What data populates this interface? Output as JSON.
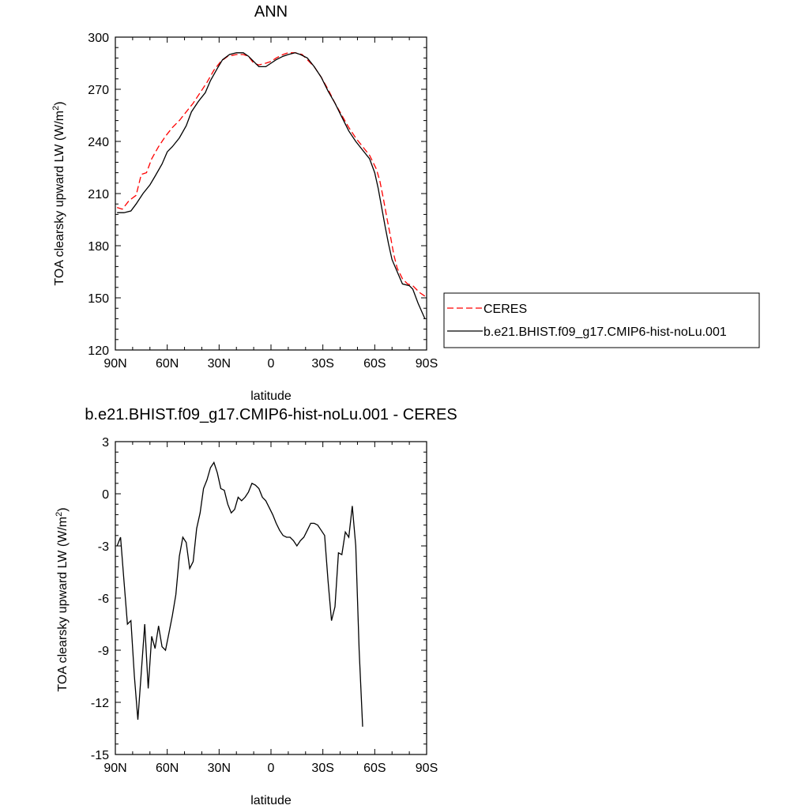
{
  "chart_data": [
    {
      "type": "line",
      "title": "ANN",
      "xlabel": "latitude",
      "ylabel": "TOA clearsky upward LW (W/m²)",
      "xlim": [
        90,
        -90
      ],
      "ylim": [
        120,
        300
      ],
      "x_ticks": [
        90,
        60,
        30,
        0,
        -30,
        -60,
        -90
      ],
      "x_tick_labels": [
        "90N",
        "60N",
        "30N",
        "0",
        "30S",
        "60S",
        "90S"
      ],
      "y_ticks": [
        120,
        150,
        180,
        210,
        240,
        270,
        300
      ],
      "y_tick_labels": [
        "120",
        "150",
        "180",
        "210",
        "240",
        "270",
        "300"
      ],
      "legend_position": "right",
      "series": [
        {
          "name": "CERES",
          "color": "#ff0000",
          "dash": "dashed",
          "points": [
            [
              89,
              202
            ],
            [
              86,
              201
            ],
            [
              82,
              206
            ],
            [
              78,
              209
            ],
            [
              75,
              221
            ],
            [
              72,
              222
            ],
            [
              69,
              230
            ],
            [
              65,
              237
            ],
            [
              61,
              243
            ],
            [
              57,
              248
            ],
            [
              53,
              252
            ],
            [
              49,
              257
            ],
            [
              45,
              262
            ],
            [
              41,
              268
            ],
            [
              37,
              274
            ],
            [
              33,
              281
            ],
            [
              29,
              286
            ],
            [
              25,
              289
            ],
            [
              20,
              290
            ],
            [
              16,
              290
            ],
            [
              13,
              289
            ],
            [
              10,
              285
            ],
            [
              7,
              284
            ],
            [
              3,
              285
            ],
            [
              0,
              286
            ],
            [
              -3,
              288
            ],
            [
              -7,
              290
            ],
            [
              -10,
              291
            ],
            [
              -14,
              291
            ],
            [
              -18,
              290
            ],
            [
              -21,
              287
            ],
            [
              -25,
              283
            ],
            [
              -29,
              277
            ],
            [
              -33,
              270
            ],
            [
              -37,
              262
            ],
            [
              -41,
              255
            ],
            [
              -45,
              248
            ],
            [
              -49,
              242
            ],
            [
              -53,
              237
            ],
            [
              -57,
              232
            ],
            [
              -61,
              224
            ],
            [
              -63,
              217
            ],
            [
              -65,
              207
            ],
            [
              -67,
              196
            ],
            [
              -69,
              186
            ],
            [
              -71,
              175
            ],
            [
              -73,
              167
            ],
            [
              -76,
              161
            ],
            [
              -79,
              158
            ],
            [
              -82,
              157
            ],
            [
              -86,
              153
            ],
            [
              -89,
              151
            ]
          ]
        },
        {
          "name": "b.e21.BHIST.f09_g17.CMIP6-hist-noLu.001",
          "color": "#000000",
          "dash": "solid",
          "points": [
            [
              89,
              199
            ],
            [
              85,
              199
            ],
            [
              81,
              200
            ],
            [
              78,
              204
            ],
            [
              74,
              210
            ],
            [
              70,
              215
            ],
            [
              67,
              220
            ],
            [
              63,
              227
            ],
            [
              60,
              234
            ],
            [
              57,
              237
            ],
            [
              53,
              242
            ],
            [
              49,
              249
            ],
            [
              46,
              257
            ],
            [
              42,
              263
            ],
            [
              38,
              268
            ],
            [
              35,
              275
            ],
            [
              31,
              282
            ],
            [
              28,
              287
            ],
            [
              24,
              290
            ],
            [
              20,
              291
            ],
            [
              16,
              291
            ],
            [
              13,
              289
            ],
            [
              10,
              286
            ],
            [
              7,
              283
            ],
            [
              3,
              283
            ],
            [
              0,
              285
            ],
            [
              -3,
              287
            ],
            [
              -7,
              289
            ],
            [
              -10,
              290
            ],
            [
              -14,
              291
            ],
            [
              -17,
              290
            ],
            [
              -21,
              288
            ],
            [
              -25,
              283
            ],
            [
              -29,
              277
            ],
            [
              -33,
              269
            ],
            [
              -37,
              262
            ],
            [
              -41,
              254
            ],
            [
              -45,
              246
            ],
            [
              -49,
              240
            ],
            [
              -53,
              235
            ],
            [
              -57,
              230
            ],
            [
              -60,
              222
            ],
            [
              -62,
              213
            ],
            [
              -64,
              202
            ],
            [
              -66,
              191
            ],
            [
              -68,
              181
            ],
            [
              -70,
              172
            ],
            [
              -73,
              165
            ],
            [
              -76,
              158
            ],
            [
              -80,
              157
            ],
            [
              -82,
              155
            ],
            [
              -85,
              147
            ],
            [
              -89,
              138
            ]
          ]
        }
      ]
    },
    {
      "type": "line",
      "title": "b.e21.BHIST.f09_g17.CMIP6-hist-noLu.001 - CERES",
      "xlabel": "latitude",
      "ylabel": "TOA clearsky upward LW (W/m²)",
      "xlim": [
        90,
        -90
      ],
      "ylim": [
        -15,
        3
      ],
      "x_ticks": [
        90,
        60,
        30,
        0,
        -30,
        -60,
        -90
      ],
      "x_tick_labels": [
        "90N",
        "60N",
        "30N",
        "0",
        "30S",
        "60S",
        "90S"
      ],
      "y_ticks": [
        -15,
        -12,
        -9,
        -6,
        -3,
        0,
        3
      ],
      "y_tick_labels": [
        "-15",
        "-12",
        "-9",
        "-6",
        "-3",
        "0",
        "3"
      ],
      "series": [
        {
          "color": "#000000",
          "dash": "solid",
          "points": [
            [
              89,
              -3.0
            ],
            [
              87,
              -2.5
            ],
            [
              85,
              -5.0
            ],
            [
              83,
              -7.5
            ],
            [
              81,
              -7.3
            ],
            [
              79,
              -10.5
            ],
            [
              77,
              -13.0
            ],
            [
              75,
              -10.3
            ],
            [
              73,
              -7.5
            ],
            [
              71,
              -11.2
            ],
            [
              69,
              -8.2
            ],
            [
              67,
              -8.9
            ],
            [
              65,
              -7.6
            ],
            [
              63,
              -8.8
            ],
            [
              61,
              -9.0
            ],
            [
              59,
              -8.0
            ],
            [
              57,
              -7.0
            ],
            [
              55,
              -5.8
            ],
            [
              53,
              -3.6
            ],
            [
              51,
              -2.5
            ],
            [
              49,
              -2.8
            ],
            [
              47,
              -4.3
            ],
            [
              45,
              -3.9
            ],
            [
              43,
              -2.0
            ],
            [
              41,
              -1.1
            ],
            [
              39,
              0.3
            ],
            [
              37,
              0.8
            ],
            [
              35,
              1.5
            ],
            [
              33,
              1.8
            ],
            [
              31,
              1.2
            ],
            [
              29,
              0.3
            ],
            [
              27,
              0.2
            ],
            [
              25,
              -0.6
            ],
            [
              23,
              -1.1
            ],
            [
              21,
              -0.9
            ],
            [
              19,
              -0.2
            ],
            [
              17,
              -0.4
            ],
            [
              15,
              -0.2
            ],
            [
              13,
              0.1
            ],
            [
              11,
              0.6
            ],
            [
              9,
              0.5
            ],
            [
              7,
              0.3
            ],
            [
              5,
              -0.2
            ],
            [
              3,
              -0.4
            ],
            [
              1,
              -0.8
            ],
            [
              -1,
              -1.2
            ],
            [
              -3,
              -1.7
            ],
            [
              -5,
              -2.1
            ],
            [
              -7,
              -2.4
            ],
            [
              -9,
              -2.5
            ],
            [
              -11,
              -2.5
            ],
            [
              -13,
              -2.7
            ],
            [
              -15,
              -3.0
            ],
            [
              -17,
              -2.7
            ],
            [
              -19,
              -2.5
            ],
            [
              -21,
              -2.1
            ],
            [
              -23,
              -1.7
            ],
            [
              -25,
              -1.7
            ],
            [
              -27,
              -1.8
            ],
            [
              -29,
              -2.1
            ],
            [
              -31,
              -2.4
            ],
            [
              -33,
              -5.0
            ],
            [
              -35,
              -7.3
            ],
            [
              -37,
              -6.5
            ],
            [
              -39,
              -3.4
            ],
            [
              -41,
              -3.5
            ],
            [
              -43,
              -2.2
            ],
            [
              -45,
              -2.5
            ],
            [
              -47,
              -0.7
            ],
            [
              -49,
              -3.0
            ],
            [
              -51,
              -9.0
            ],
            [
              -53,
              -13.4
            ]
          ]
        }
      ]
    }
  ]
}
